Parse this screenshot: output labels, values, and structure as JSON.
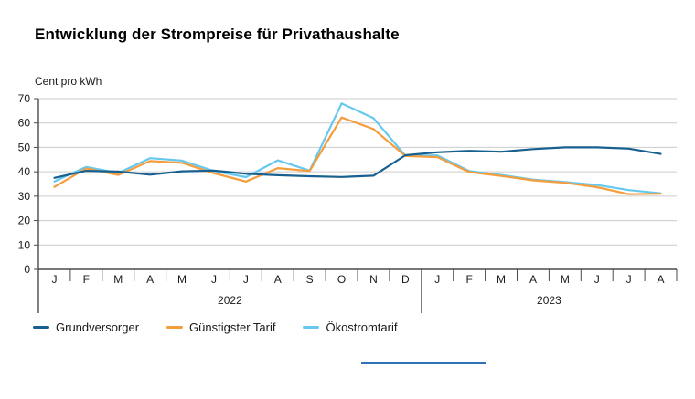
{
  "header": {
    "title": "Entwicklung der Strompreise für Privathaushalte"
  },
  "chart_data": {
    "type": "line",
    "title": "Entwicklung der Strompreise für Privathaushalte",
    "ylabel": "Cent pro kWh",
    "ylim": [
      0,
      70
    ],
    "ytick_step": 10,
    "grid": true,
    "legend_position": "bottom",
    "categories": [
      "J",
      "F",
      "M",
      "A",
      "M",
      "J",
      "J",
      "A",
      "S",
      "O",
      "N",
      "D",
      "J",
      "F",
      "M",
      "A",
      "M",
      "J",
      "J",
      "A"
    ],
    "year_groups": [
      {
        "label": "2022",
        "from": 0,
        "to": 11
      },
      {
        "label": "2023",
        "from": 12,
        "to": 19
      }
    ],
    "series": [
      {
        "name": "Grundversorger",
        "color": "#17608f",
        "values": [
          37.5,
          40.4,
          40.1,
          38.8,
          40.2,
          40.5,
          39.2,
          38.6,
          38.2,
          37.9,
          38.4,
          46.8,
          48.0,
          48.6,
          48.2,
          49.3,
          50.0,
          50.0,
          49.5,
          47.3
        ]
      },
      {
        "name": "Günstigster Tarif",
        "color": "#f59d3d",
        "values": [
          33.8,
          41.4,
          38.7,
          44.4,
          43.7,
          39.4,
          36.0,
          41.5,
          40.3,
          62.3,
          57.5,
          46.5,
          46.0,
          39.9,
          38.3,
          36.5,
          35.5,
          33.7,
          30.8,
          31.0
        ]
      },
      {
        "name": "Ökostromtarif",
        "color": "#67c8ef",
        "values": [
          36.0,
          42.0,
          39.5,
          45.6,
          44.6,
          40.3,
          37.8,
          44.7,
          40.5,
          68.0,
          62.0,
          46.6,
          46.7,
          40.3,
          38.7,
          36.8,
          35.8,
          34.6,
          32.5,
          31.2
        ]
      }
    ]
  },
  "colors": {
    "grid": "#cccccc",
    "axis": "#4a4a4a",
    "divider": "#2e74b5"
  }
}
